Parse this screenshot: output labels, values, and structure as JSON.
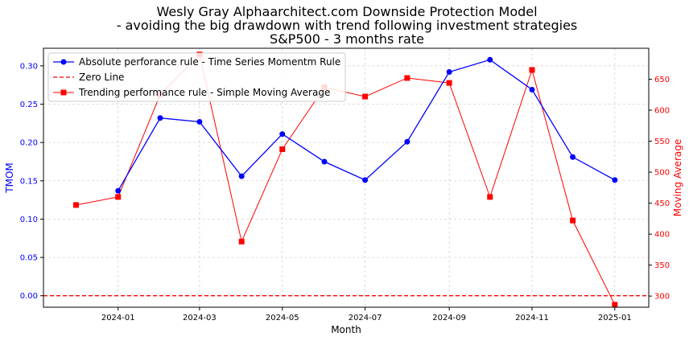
{
  "chart_data": {
    "type": "line",
    "title": [
      "Wesly Gray Alphaarchitect.com Downside Protection Model",
      "- avoiding the big drawdown with trend following investment strategies",
      "S&P500 - 3 months rate"
    ],
    "xlabel": "Month",
    "ylabel_left": "TMOM",
    "ylabel_right": "Moving Average",
    "x_ticks": [
      "2024-01",
      "2024-03",
      "2024-05",
      "2024-07",
      "2024-09",
      "2024-11",
      "2025-01"
    ],
    "y_left_ticks": [
      "0.00",
      "0.05",
      "0.10",
      "0.15",
      "0.20",
      "0.25",
      "0.30"
    ],
    "y_right_ticks": [
      "300",
      "350",
      "400",
      "450",
      "500",
      "550",
      "600",
      "650"
    ],
    "ylim_left": [
      -0.015,
      0.323
    ],
    "ylim_right": [
      282,
      700
    ],
    "xlim": [
      "2023-11-07",
      "2025-01-26"
    ],
    "grid": true,
    "legend_position": "top-left",
    "colors": {
      "tmom": "#0000ff",
      "zero": "#ff0000",
      "sma": "#ff0000",
      "left_axis": "#0000ff",
      "right_axis": "#ff0000"
    },
    "series": [
      {
        "name": "Absolute perforance rule - Time Series Momentm Rule",
        "axis": "left",
        "marker": "circle",
        "x": [
          "2024-01-01",
          "2024-02-01",
          "2024-03-01",
          "2024-04-01",
          "2024-05-01",
          "2024-06-01",
          "2024-07-01",
          "2024-08-01",
          "2024-09-01",
          "2024-10-01",
          "2024-11-01",
          "2024-12-01",
          "2025-01-01"
        ],
        "values": [
          0.137,
          0.232,
          0.227,
          0.156,
          0.211,
          0.175,
          0.151,
          0.201,
          0.292,
          0.308,
          0.269,
          0.181,
          0.151
        ]
      },
      {
        "name": "Zero Line",
        "axis": "left",
        "style": "dashed",
        "value": 0
      },
      {
        "name": "Trending performance rule - Simple Moving Average",
        "axis": "right",
        "marker": "square",
        "x": [
          "2023-12-01",
          "2024-01-01",
          "2024-02-01",
          "2024-03-01",
          "2024-04-01",
          "2024-05-01",
          "2024-06-01",
          "2024-07-01",
          "2024-08-01",
          "2024-09-01",
          "2024-10-01",
          "2024-11-01",
          "2024-12-01",
          "2025-01-01"
        ],
        "values": [
          447,
          460,
          625,
          690,
          388,
          537,
          637,
          622,
          652,
          644,
          460,
          665,
          422,
          286
        ]
      }
    ]
  }
}
